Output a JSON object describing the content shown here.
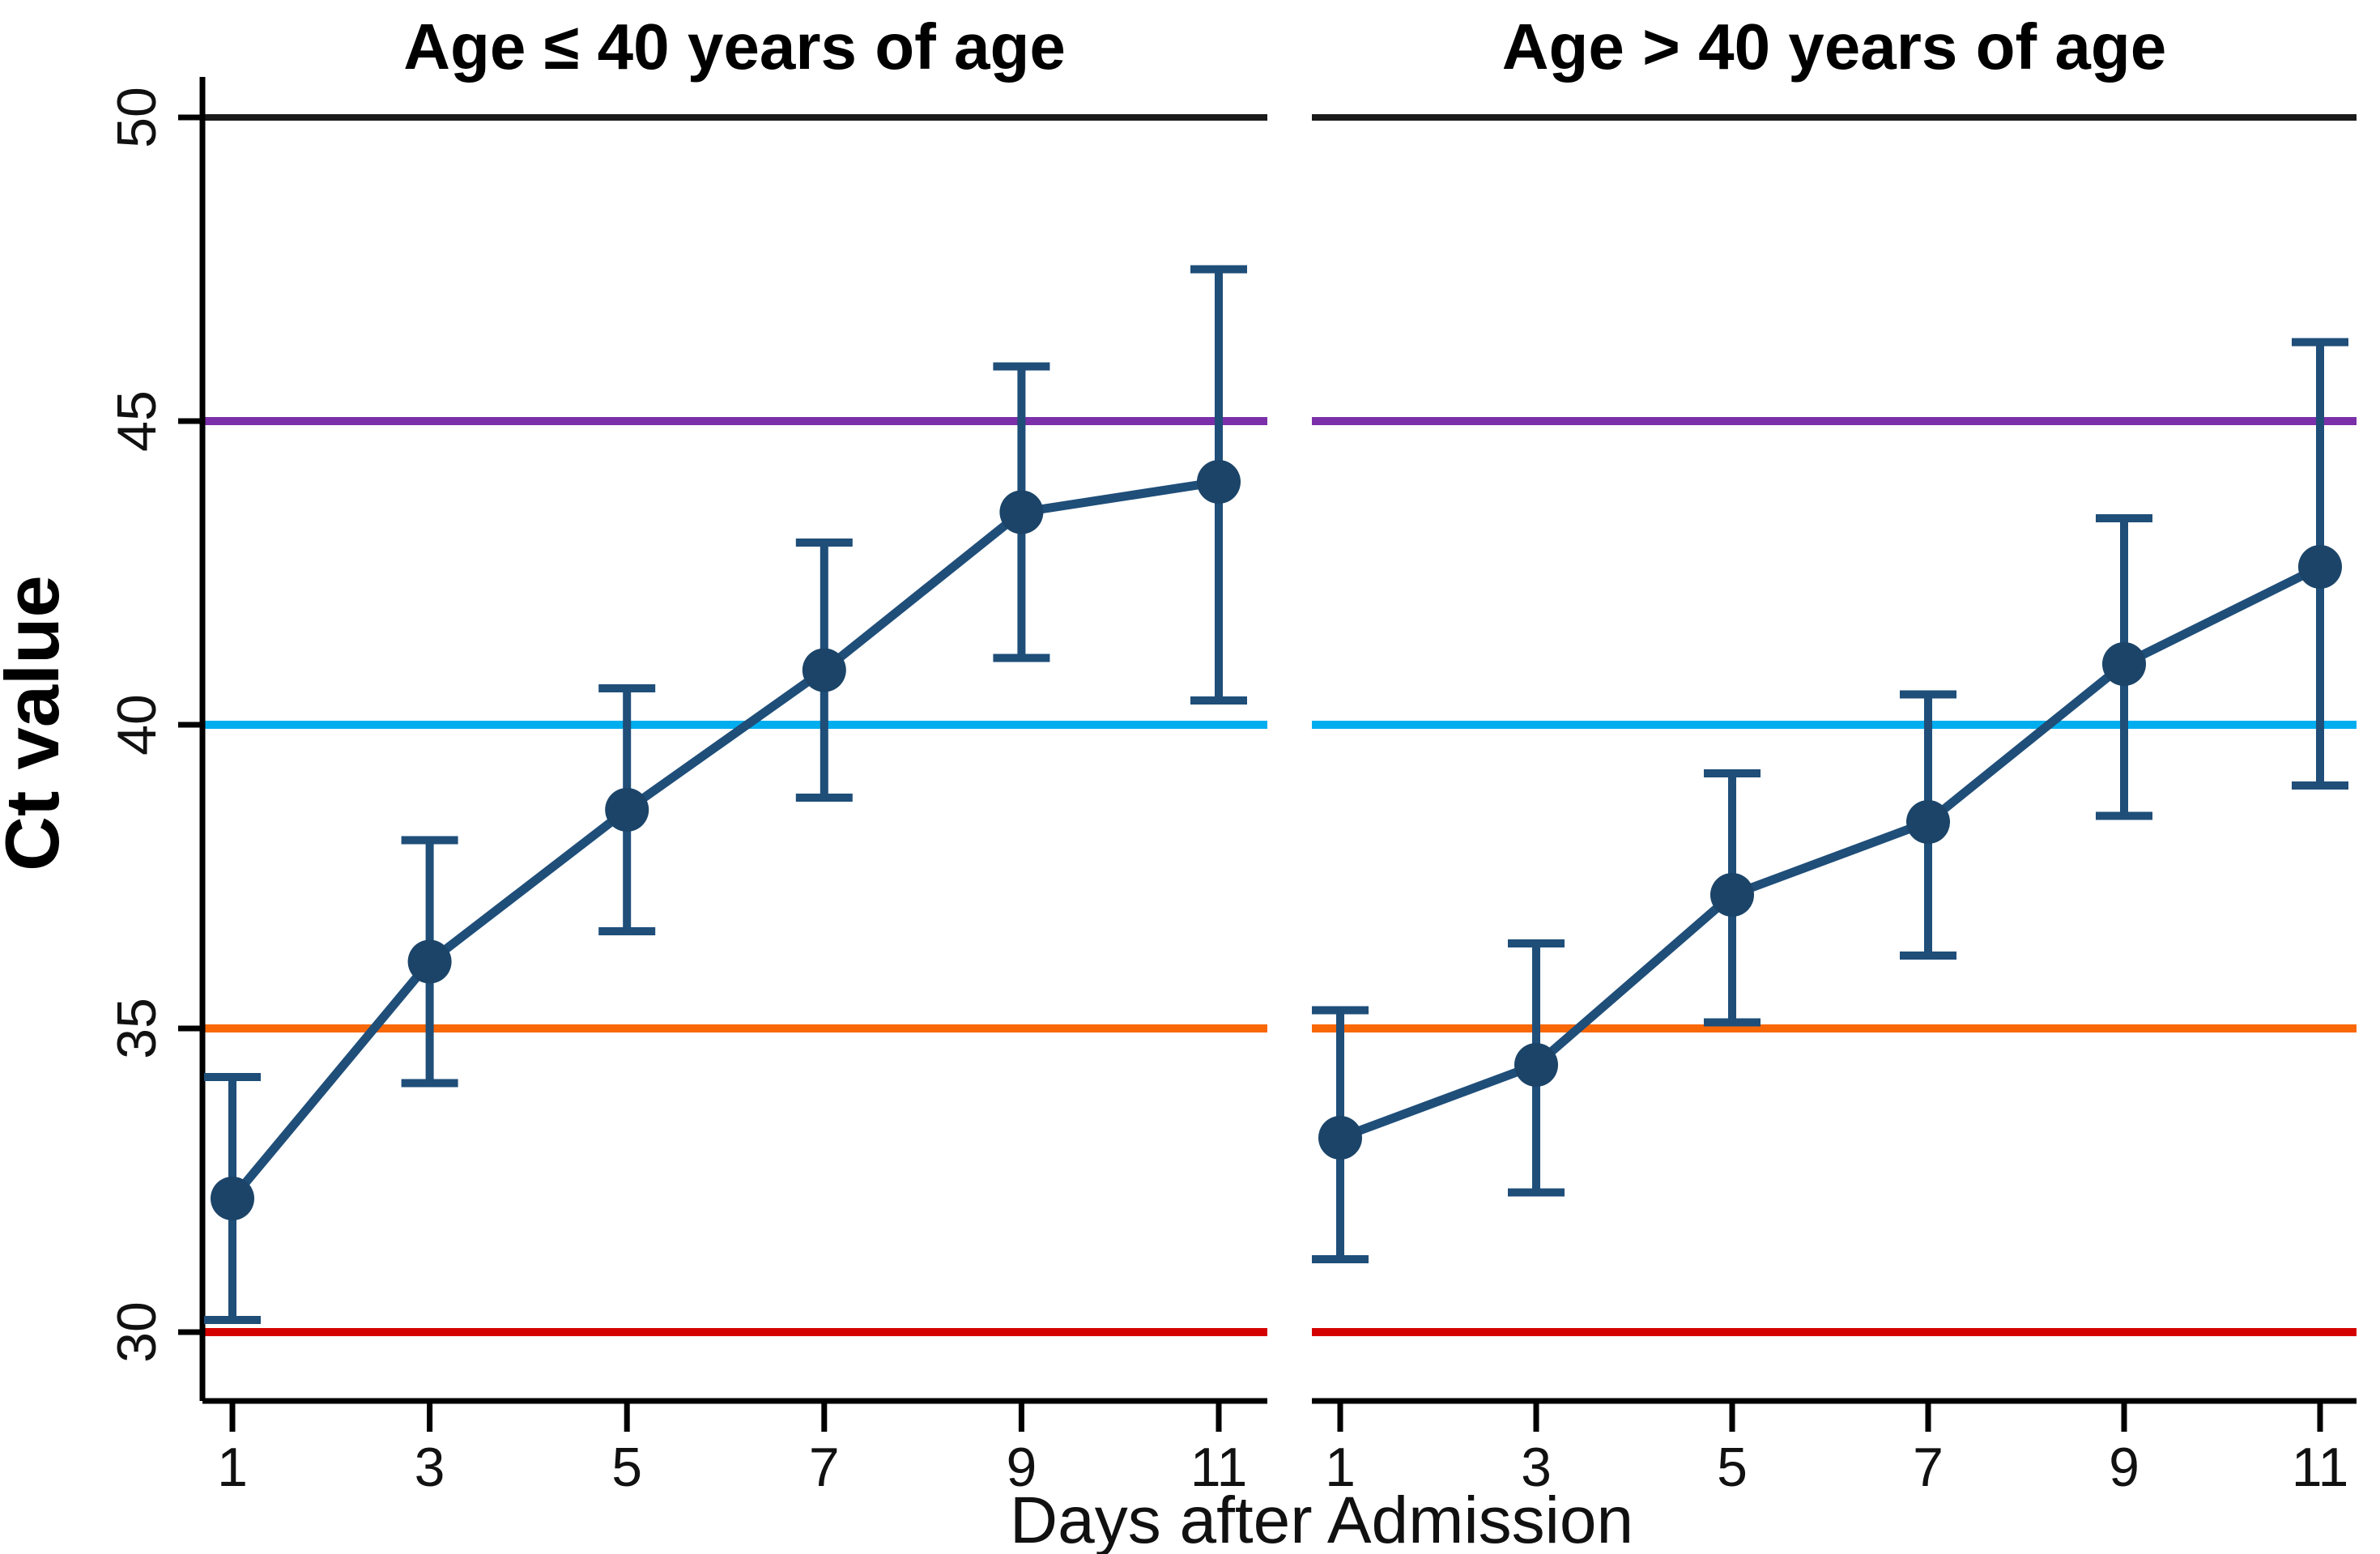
{
  "figure": {
    "background": "#ffffff"
  },
  "chart_data": {
    "type": "line",
    "description": "Two-panel errorbar line chart of mean Ct value (with 95% CI whiskers) versus days after admission, split by age group, with horizontal reference lines at Ct 30, 35, 40, 45 and 50.",
    "x": [
      1,
      3,
      5,
      7,
      9,
      11
    ],
    "xtick_labels": [
      "1",
      "3",
      "5",
      "7",
      "9",
      "11"
    ],
    "xlabel": "Days after Admission",
    "ylabel": "Ct value",
    "ylim": [
      28.9,
      50.7
    ],
    "yticks": [
      30,
      35,
      40,
      45,
      50
    ],
    "ytick_labels": [
      "30",
      "35",
      "40",
      "45",
      "50"
    ],
    "grid": false,
    "legend": "none",
    "series_color": "#1f4e79",
    "marker_color": "#1b4468",
    "panels": [
      {
        "title": "Age ≤ 40 years of age",
        "series": [
          {
            "name": "Mean Ct value",
            "values": [
              32.2,
              36.1,
              38.6,
              40.9,
              43.5,
              44.0
            ],
            "ci_low": [
              30.2,
              34.1,
              36.6,
              38.8,
              41.1,
              40.4
            ],
            "ci_high": [
              34.2,
              38.1,
              40.6,
              43.0,
              45.9,
              47.5
            ]
          }
        ]
      },
      {
        "title": "Age > 40 years of age",
        "series": [
          {
            "name": "Mean Ct value",
            "values": [
              33.2,
              34.4,
              37.2,
              38.4,
              41.0,
              42.6
            ],
            "ci_low": [
              31.2,
              32.3,
              35.1,
              36.2,
              38.5,
              39.0
            ],
            "ci_high": [
              35.3,
              36.4,
              39.2,
              40.5,
              43.4,
              46.3
            ]
          }
        ]
      }
    ],
    "reference_lines": [
      {
        "value": 30,
        "color": "#d40000",
        "name": "ct-30-line"
      },
      {
        "value": 35,
        "color": "#f96806",
        "name": "ct-35-line"
      },
      {
        "value": 40,
        "color": "#00aeef",
        "name": "ct-40-line"
      },
      {
        "value": 45,
        "color": "#7b2fa8",
        "name": "ct-45-line"
      },
      {
        "value": 50,
        "color": "#1a1a1a",
        "name": "ct-50-line"
      }
    ]
  }
}
